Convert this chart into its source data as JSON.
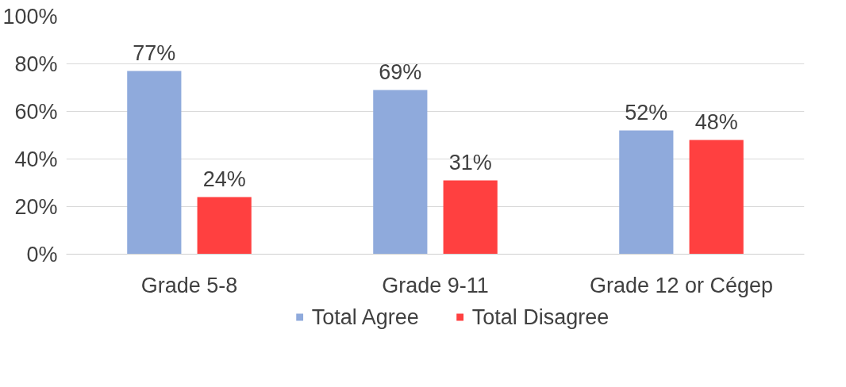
{
  "chart_data": {
    "type": "bar",
    "categories": [
      "Grade 5-8",
      "Grade 9-11",
      "Grade 12 or Cégep"
    ],
    "series": [
      {
        "name": "Total Agree",
        "color": "#8faadc",
        "values": [
          77,
          69,
          52
        ]
      },
      {
        "name": "Total Disagree",
        "color": "#ff4040",
        "values": [
          24,
          31,
          48
        ]
      }
    ],
    "ylim": [
      0,
      100
    ],
    "yticks": [
      {
        "value": 0,
        "label": "0%"
      },
      {
        "value": 20,
        "label": "20%"
      },
      {
        "value": 40,
        "label": "40%"
      },
      {
        "value": 60,
        "label": "60%"
      },
      {
        "value": 80,
        "label": "80%"
      },
      {
        "value": 100,
        "label": "100%"
      }
    ],
    "value_labels": [
      [
        "77%",
        "69%",
        "52%"
      ],
      [
        "24%",
        "31%",
        "48%"
      ]
    ],
    "grid": "y",
    "legend": "bottom"
  }
}
